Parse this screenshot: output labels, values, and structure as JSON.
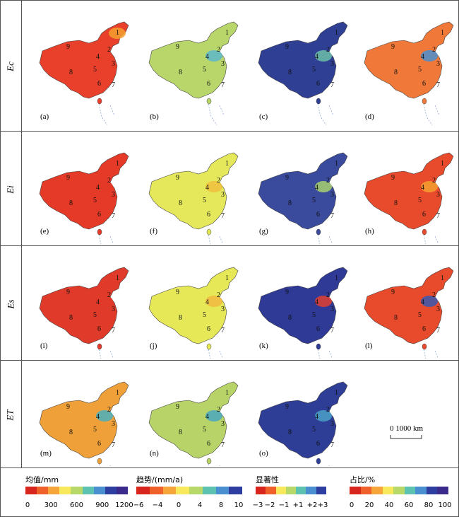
{
  "rows": [
    {
      "label": "Ec",
      "panels": [
        {
          "label": "(a)",
          "fill": "#e8402a",
          "patch": "#f5a030"
        },
        {
          "label": "(b)",
          "fill": "#b8d66a",
          "patch": "#5cb8c8"
        },
        {
          "label": "(c)",
          "fill": "#2f3f94",
          "patch": "#6cc0a8"
        },
        {
          "label": "(d)",
          "fill": "#f07838",
          "patch": "#4a8fd0"
        }
      ]
    },
    {
      "label": "Ei",
      "panels": [
        {
          "label": "(e)",
          "fill": "#e53a28",
          "patch": "#e53a28"
        },
        {
          "label": "(f)",
          "fill": "#e4e85a",
          "patch": "#f0c040"
        },
        {
          "label": "(g)",
          "fill": "#3a4a9c",
          "patch": "#a8d070"
        },
        {
          "label": "(h)",
          "fill": "#e84a2c",
          "patch": "#f5a030"
        }
      ]
    },
    {
      "label": "Es",
      "panels": [
        {
          "label": "(i)",
          "fill": "#e03a2a",
          "patch": "#e03a2a"
        },
        {
          "label": "(j)",
          "fill": "#e6e858",
          "patch": "#f0b840"
        },
        {
          "label": "(k)",
          "fill": "#2e3a96",
          "patch": "#e04030"
        },
        {
          "label": "(l)",
          "fill": "#e84a2c",
          "patch": "#3a58b0"
        }
      ]
    },
    {
      "label": "ET",
      "panels": [
        {
          "label": "(m)",
          "fill": "#f0a038",
          "patch": "#4ab0c0"
        },
        {
          "label": "(n)",
          "fill": "#b8d468",
          "patch": "#4aa8c0"
        },
        {
          "label": "(o)",
          "fill": "#2e3e96",
          "patch": "#4aa0c8"
        }
      ]
    }
  ],
  "region_numbers": [
    "1",
    "2",
    "3",
    "4",
    "5",
    "6",
    "7",
    "8",
    "9"
  ],
  "scale_bar": {
    "label": "0   1000 km"
  },
  "legends": [
    {
      "title": "均值/mm",
      "colors": [
        "#d8251d",
        "#f0602a",
        "#f5a53a",
        "#f8e85c",
        "#b8d86a",
        "#5ec2b0",
        "#4a8fd0",
        "#2e3ea0",
        "#3a2a8c"
      ],
      "ticks": [
        "0",
        "300",
        "600",
        "900",
        "1200"
      ]
    },
    {
      "title": "趋势/(mm/a)",
      "colors": [
        "#d8251d",
        "#f0602a",
        "#f5a53a",
        "#f8e85c",
        "#b8d86a",
        "#5ec2b0",
        "#4a8fd0",
        "#2e3ea0"
      ],
      "ticks": [
        "−6",
        "−4",
        "0",
        "4",
        "8",
        "10"
      ]
    },
    {
      "title": "显著性",
      "colors": [
        "#d8251d",
        "#f0602a",
        "#f8e85c",
        "#b8d86a",
        "#5ec2b0",
        "#4a8fd0",
        "#2e3ea0"
      ],
      "ticks": [
        "−3",
        "−2",
        "−1",
        "+1",
        "+2",
        "+3"
      ]
    },
    {
      "title": "占比/%",
      "colors": [
        "#d8251d",
        "#f0602a",
        "#f5a53a",
        "#f8e85c",
        "#b8d86a",
        "#5ec2b0",
        "#4a8fd0",
        "#2e3ea0",
        "#3a2a8c"
      ],
      "ticks": [
        "0",
        "20",
        "40",
        "60",
        "80",
        "100"
      ]
    }
  ]
}
